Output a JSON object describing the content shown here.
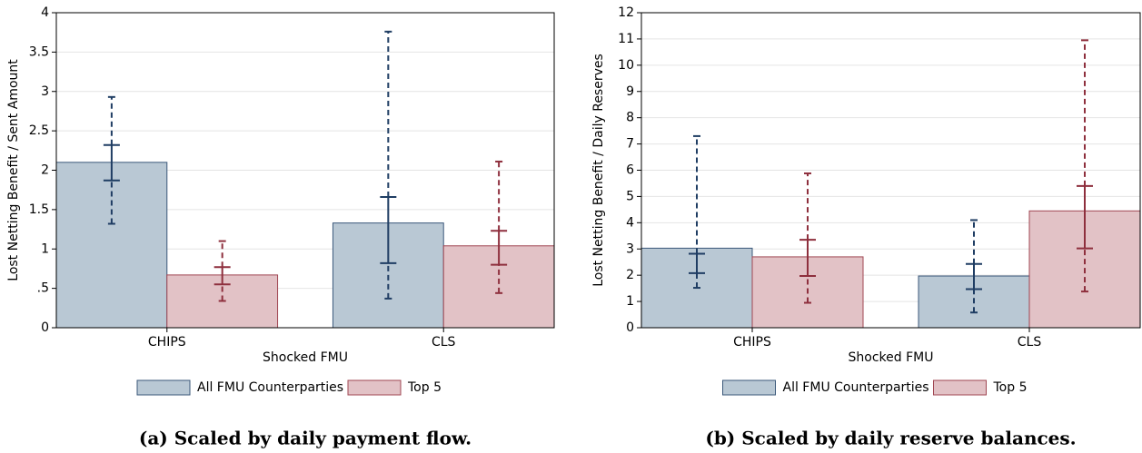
{
  "chart_data": [
    {
      "type": "bar",
      "caption": "(a) Scaled by daily payment flow.",
      "xlabel": "Shocked FMU",
      "ylabel": "Lost Netting Benefit / Sent Amount",
      "categories": [
        "CHIPS",
        "CLS"
      ],
      "series": [
        {
          "name": "All FMU Counterparties",
          "color": "#b9c8d4",
          "values": [
            2.1,
            1.33
          ],
          "ci_inner": [
            [
              1.87,
              2.32
            ],
            [
              0.82,
              1.66
            ]
          ],
          "ci_outer": [
            [
              1.32,
              2.93
            ],
            [
              0.37,
              3.76
            ]
          ]
        },
        {
          "name": "Top 5",
          "color": "#e2c2c6",
          "values": [
            0.67,
            1.04
          ],
          "ci_inner": [
            [
              0.55,
              0.77
            ],
            [
              0.8,
              1.23
            ]
          ],
          "ci_outer": [
            [
              0.34,
              1.1
            ],
            [
              0.44,
              2.11
            ]
          ]
        }
      ],
      "ylim": [
        0,
        4
      ],
      "yticks": [
        0,
        {
          "value": 0.5,
          "label": ".5"
        },
        1,
        1.5,
        2,
        2.5,
        3,
        3.5,
        4
      ],
      "grid": true
    },
    {
      "type": "bar",
      "caption": "(b) Scaled by daily reserve balances.",
      "xlabel": "Shocked FMU",
      "ylabel": "Lost Netting Benefit / Daily Reserves",
      "categories": [
        "CHIPS",
        "CLS"
      ],
      "series": [
        {
          "name": "All FMU Counterparties",
          "color": "#b9c8d4",
          "values": [
            3.03,
            1.97
          ],
          "ci_inner": [
            [
              2.08,
              2.82
            ],
            [
              1.47,
              2.43
            ]
          ],
          "ci_outer": [
            [
              1.52,
              7.3
            ],
            [
              0.58,
              4.1
            ]
          ]
        },
        {
          "name": "Top 5",
          "color": "#e2c2c6",
          "values": [
            2.7,
            4.45
          ],
          "ci_inner": [
            [
              1.97,
              3.35
            ],
            [
              3.02,
              5.4
            ]
          ],
          "ci_outer": [
            [
              0.95,
              5.88
            ],
            [
              1.38,
              10.95
            ]
          ]
        }
      ],
      "ylim": [
        0,
        12
      ],
      "yticks": [
        0,
        1,
        2,
        3,
        4,
        5,
        6,
        7,
        8,
        9,
        10,
        11,
        12
      ],
      "grid": true
    }
  ]
}
